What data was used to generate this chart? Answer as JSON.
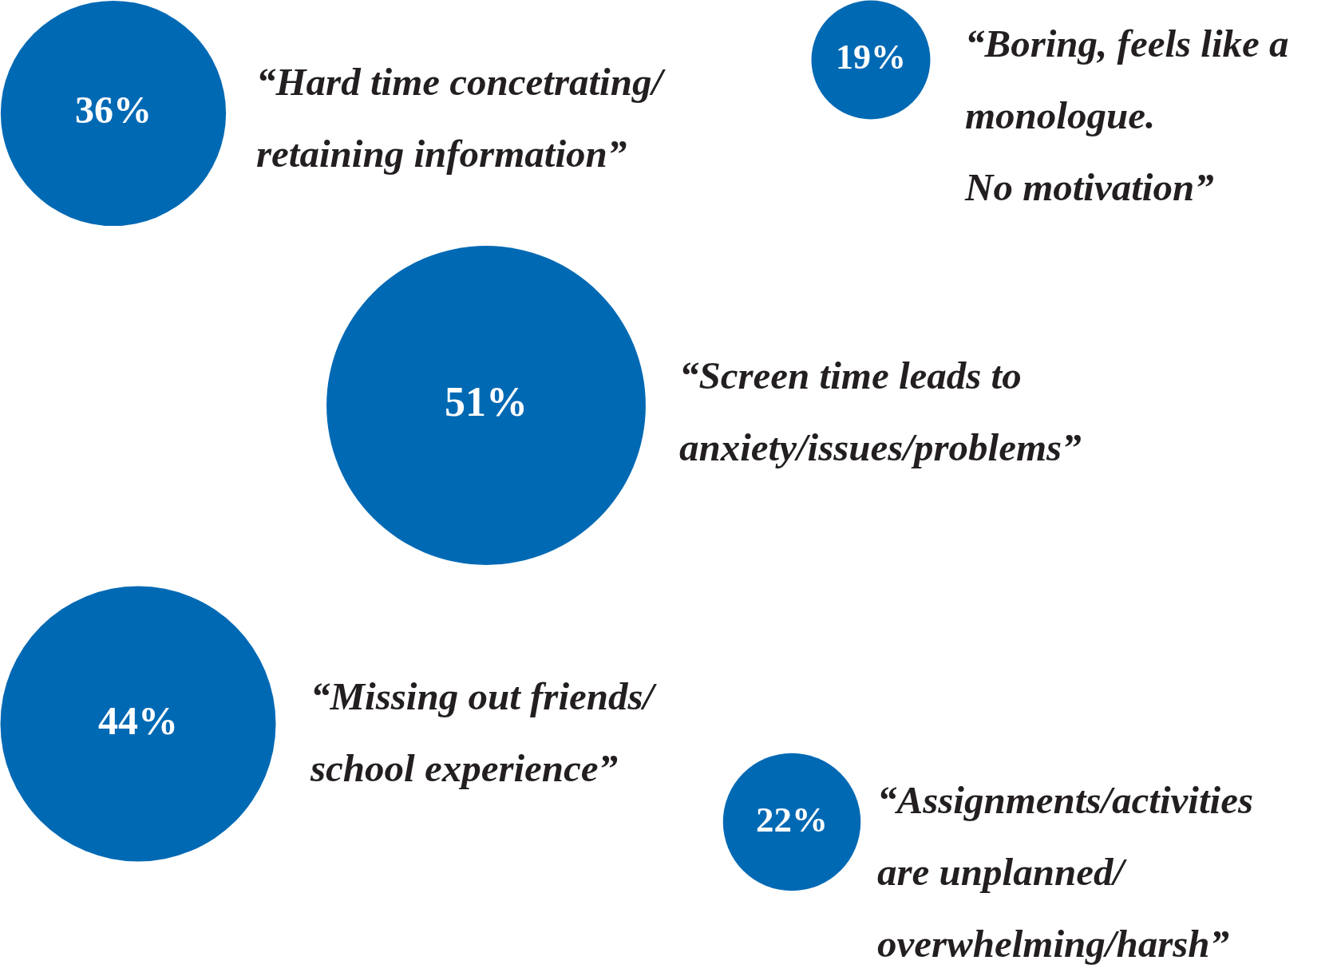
{
  "chart_data": {
    "type": "other",
    "categories": [
      "“Hard time concetrating/\nretaining information”",
      "“Boring, feels like a\nmonologue.\nNo motivation”",
      "“Screen time leads to\nanxiety/issues/problems”",
      "“Missing out friends/\nschool experience”",
      "“Assignments/activities\nare unplanned/\noverwhelming/harsh”"
    ],
    "values": [
      36,
      19,
      51,
      44,
      22
    ],
    "value_labels": [
      "36%",
      "19%",
      "51%",
      "44%",
      "22%"
    ],
    "color": "#0069b4"
  }
}
